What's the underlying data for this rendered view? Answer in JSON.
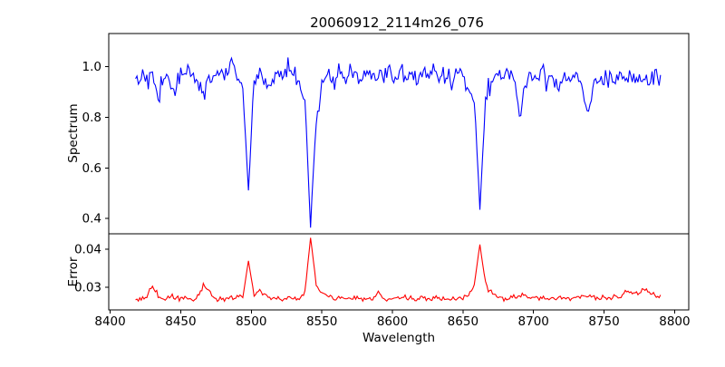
{
  "colors": {
    "background": "#ffffff",
    "axes": "#000000",
    "spectrum_line": "#0000ff",
    "error_line": "#ff0000"
  },
  "chart_data": {
    "type": "line",
    "title": "20060912_2114m26_076",
    "xlabel": "Wavelength",
    "grid": false,
    "xlim": [
      8399,
      8810
    ],
    "xtick_values": [
      8400,
      8450,
      8500,
      8550,
      8600,
      8650,
      8700,
      8750,
      8800
    ],
    "xtick_labels": [
      "8400",
      "8450",
      "8500",
      "8550",
      "8600",
      "8650",
      "8700",
      "8750",
      "8800"
    ],
    "x_start": 8418,
    "x_step": 4,
    "upsample": 4,
    "seed": 42,
    "panels": [
      {
        "name": "spectrum",
        "ylabel": "Spectrum",
        "ylim": [
          0.34,
          1.13
        ],
        "ytick_values": [
          1.0,
          0.8,
          0.6,
          0.4
        ],
        "ytick_labels": [
          "1.0",
          "0.8",
          "0.6",
          "0.4"
        ]
      },
      {
        "name": "error",
        "ylabel": "Error",
        "ylim": [
          0.024,
          0.044
        ],
        "ytick_values": [
          0.04,
          0.03
        ],
        "ytick_labels": [
          "0.04",
          "0.03"
        ]
      }
    ],
    "series": [
      {
        "name": "spectrum",
        "color": "#0000ff",
        "noise_sigma": 0.019,
        "values": [
          0.97,
          0.96,
          0.98,
          0.95,
          0.86,
          0.97,
          0.95,
          0.89,
          0.98,
          0.96,
          0.99,
          0.94,
          0.89,
          0.97,
          0.95,
          0.98,
          0.96,
          1.0,
          0.97,
          0.93,
          0.51,
          0.94,
          0.97,
          0.95,
          0.91,
          0.98,
          0.96,
          0.99,
          0.97,
          0.94,
          0.88,
          0.37,
          0.78,
          0.93,
          0.96,
          0.94,
          0.98,
          0.95,
          0.99,
          0.96,
          0.93,
          0.98,
          0.95,
          0.97,
          0.94,
          0.99,
          0.96,
          0.98,
          0.95,
          0.97,
          0.93,
          0.98,
          0.96,
          0.99,
          0.95,
          0.97,
          0.94,
          0.98,
          0.96,
          0.93,
          0.88,
          0.45,
          0.86,
          0.95,
          0.97,
          0.94,
          0.98,
          0.96,
          0.8,
          0.93,
          0.97,
          0.95,
          0.98,
          0.94,
          0.96,
          0.92,
          0.97,
          0.95,
          0.98,
          0.93,
          0.83,
          0.92,
          0.96,
          0.94,
          0.97,
          0.95,
          0.98,
          0.94,
          0.96,
          0.93,
          0.97,
          0.95,
          0.96,
          0.94
        ]
      },
      {
        "name": "error",
        "color": "#ff0000",
        "noise_sigma": 0.00035,
        "values": [
          0.0269,
          0.0267,
          0.027,
          0.031,
          0.0272,
          0.0268,
          0.027,
          0.0273,
          0.0268,
          0.027,
          0.0267,
          0.0274,
          0.0303,
          0.0295,
          0.027,
          0.0268,
          0.0271,
          0.0269,
          0.0272,
          0.0275,
          0.0369,
          0.028,
          0.029,
          0.0276,
          0.0272,
          0.027,
          0.0268,
          0.0271,
          0.0269,
          0.0272,
          0.0285,
          0.0429,
          0.031,
          0.0285,
          0.0275,
          0.0271,
          0.0269,
          0.0272,
          0.0268,
          0.0271,
          0.0269,
          0.0267,
          0.0272,
          0.0284,
          0.027,
          0.0268,
          0.0271,
          0.0269,
          0.0272,
          0.0268,
          0.027,
          0.0273,
          0.0269,
          0.0271,
          0.0268,
          0.027,
          0.0272,
          0.0269,
          0.0274,
          0.028,
          0.0305,
          0.0412,
          0.031,
          0.0285,
          0.0275,
          0.0271,
          0.0269,
          0.0272,
          0.0278,
          0.0274,
          0.027,
          0.0268,
          0.0271,
          0.0269,
          0.0273,
          0.027,
          0.0272,
          0.0269,
          0.0271,
          0.0274,
          0.0278,
          0.0272,
          0.027,
          0.0273,
          0.0271,
          0.0275,
          0.0272,
          0.029,
          0.0284,
          0.028,
          0.0296,
          0.0288,
          0.0278,
          0.0272
        ]
      }
    ],
    "features": {
      "absorption_line_centers": [
        8498,
        8542,
        8662
      ],
      "absorption_line_minima": [
        0.51,
        0.37,
        0.45
      ],
      "continuum_level": 0.97,
      "error_baseline": 0.027,
      "error_peak_values": [
        0.037,
        0.043,
        0.041
      ]
    }
  }
}
